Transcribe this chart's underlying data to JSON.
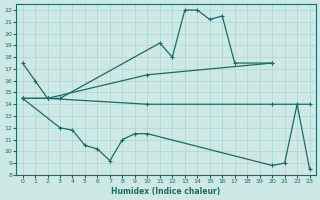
{
  "xlabel": "Humidex (Indice chaleur)",
  "bg_color": "#cde8e5",
  "grid_color": "#add4d0",
  "line_color": "#1a6b68",
  "xlim": [
    -0.5,
    23.5
  ],
  "ylim": [
    8,
    22.5
  ],
  "xticks": [
    0,
    1,
    2,
    3,
    4,
    5,
    6,
    7,
    8,
    9,
    10,
    11,
    12,
    13,
    14,
    15,
    16,
    17,
    18,
    19,
    20,
    21,
    22,
    23
  ],
  "yticks": [
    8,
    9,
    10,
    11,
    12,
    13,
    14,
    15,
    16,
    17,
    18,
    19,
    20,
    21,
    22
  ],
  "line1_x": [
    0,
    1,
    2,
    3,
    11,
    12,
    13,
    14,
    15,
    16,
    17,
    20
  ],
  "line1_y": [
    17.5,
    16.0,
    14.5,
    14.5,
    19.2,
    18.0,
    22.0,
    22.0,
    21.2,
    21.5,
    17.5,
    17.5
  ],
  "line2_x": [
    0,
    2,
    10,
    20
  ],
  "line2_y": [
    14.5,
    14.5,
    16.5,
    17.5
  ],
  "line3_x": [
    0,
    2,
    10,
    20,
    23
  ],
  "line3_y": [
    14.5,
    14.5,
    14.0,
    14.0,
    14.0
  ],
  "line4_x": [
    0,
    3,
    4,
    5,
    6,
    7,
    8,
    9,
    10,
    20,
    21,
    22,
    23
  ],
  "line4_y": [
    14.5,
    12.0,
    11.8,
    10.5,
    10.2,
    9.2,
    11.0,
    11.5,
    11.5,
    8.8,
    9.0,
    14.0,
    8.5
  ]
}
